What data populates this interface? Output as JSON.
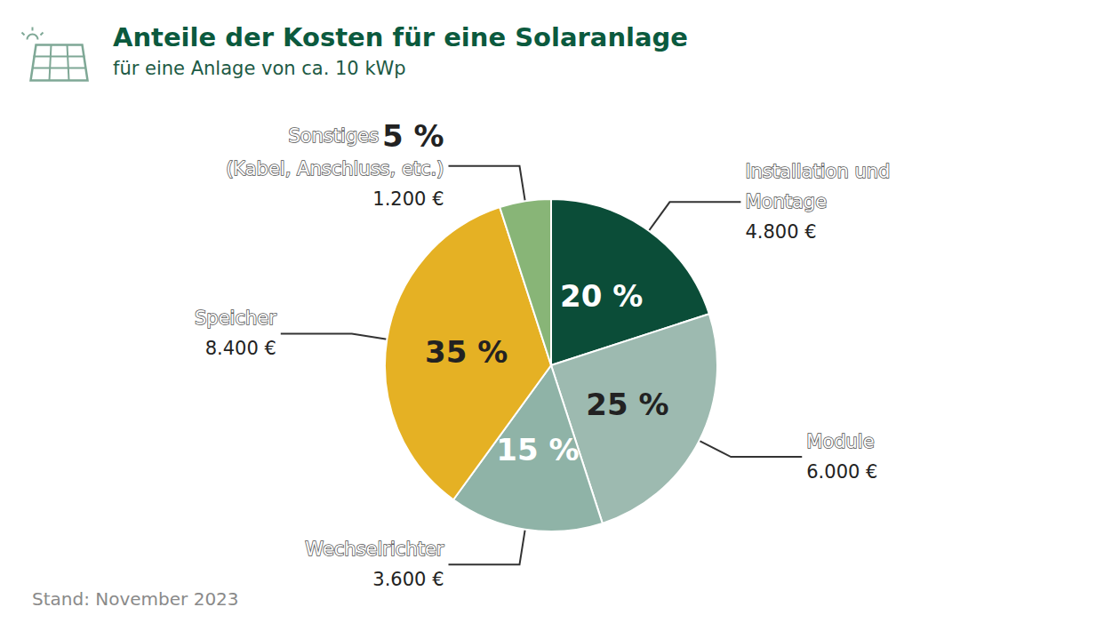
{
  "chart_data": {
    "type": "pie",
    "title": "Anteile der Kosten für eine Solaranlage",
    "subtitle": "für eine Anlage von ca. 10 kWp",
    "note": "Stand: November 2023",
    "categories": [
      "Installation und Montage",
      "Module",
      "Wechselrichter",
      "Speicher",
      "Sonstiges (Kabel, Anschluss, etc.)"
    ],
    "values": [
      20,
      25,
      15,
      35,
      5
    ],
    "value_labels": [
      "20 %",
      "25 %",
      "15 %",
      "35 %",
      "5 %"
    ],
    "amounts": [
      4800,
      6000,
      3600,
      8400,
      1200
    ],
    "amount_labels": [
      "4.800 €",
      "6.000 €",
      "3.600 €",
      "8.400 €",
      "1.200 €"
    ],
    "colors": [
      "#0b4d38",
      "#9dbab0",
      "#8fb3a7",
      "#e5b124",
      "#88b577"
    ],
    "data_labels": true
  }
}
